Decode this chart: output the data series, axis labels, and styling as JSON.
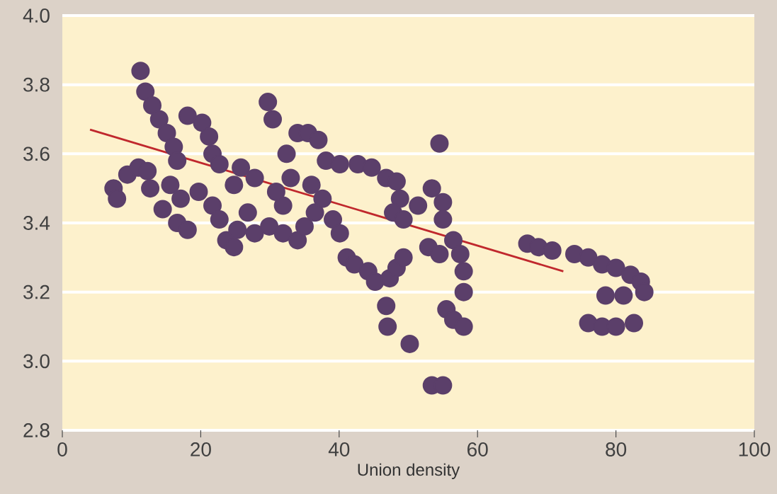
{
  "chart_data": {
    "type": "scatter",
    "xlabel": "Union density",
    "xlim": [
      0,
      100
    ],
    "xticks": [
      0,
      20,
      40,
      60,
      80,
      100
    ],
    "ylim": [
      2.8,
      4.0
    ],
    "yticks": [
      {
        "value": 2.8,
        "label": "2.8"
      },
      {
        "value": 3.0,
        "label": "3.0"
      },
      {
        "value": 3.2,
        "label": "3.2"
      },
      {
        "value": 3.4,
        "label": "3.4"
      },
      {
        "value": 3.6,
        "label": "3.6"
      },
      {
        "value": 3.8,
        "label": "3.8"
      },
      {
        "value": 4.0,
        "label": "4.0"
      }
    ],
    "grid": "y",
    "series": [
      {
        "color": "#5b3f6a",
        "x": [
          11.3,
          12,
          13,
          14,
          15.1,
          16.1,
          16.6,
          18.1,
          20.2,
          21.2,
          21.7,
          22.7,
          7.4,
          7.9,
          9.4,
          11,
          12.3,
          12.7,
          14.5,
          16.6,
          18.1,
          15.6,
          17.1,
          19.7,
          21.7,
          22.7,
          23.7,
          24.8,
          25.3,
          26.8,
          24.8,
          25.8,
          27.8,
          27.8,
          29.9,
          31.9,
          34,
          35,
          36.5,
          29.7,
          30.4,
          32.4,
          34,
          35.5,
          37,
          38.1,
          33,
          36,
          37.6,
          31.9,
          30.9,
          40.1,
          42.7,
          44.7,
          46.8,
          48.3,
          48.8,
          47.8,
          49.3,
          39.1,
          40.1,
          41.1,
          42.2,
          44.2,
          45.2,
          47.3,
          48.3,
          49.3,
          46.8,
          47,
          50.2,
          54.5,
          51.4,
          53.4,
          55,
          55,
          52.9,
          54.5,
          56.5,
          57.5,
          58,
          58,
          55.5,
          56.5,
          58,
          53.4,
          55,
          67.2,
          68.8,
          70.8,
          74,
          76,
          78,
          80,
          82.1,
          83.6,
          84.1,
          81.1,
          78.5,
          76,
          78,
          80,
          82.6
        ],
        "values": [
          3.84,
          3.78,
          3.74,
          3.7,
          3.66,
          3.62,
          3.58,
          3.71,
          3.69,
          3.65,
          3.6,
          3.57,
          3.5,
          3.47,
          3.54,
          3.56,
          3.55,
          3.5,
          3.44,
          3.4,
          3.38,
          3.51,
          3.47,
          3.49,
          3.45,
          3.41,
          3.35,
          3.33,
          3.38,
          3.43,
          3.51,
          3.56,
          3.53,
          3.37,
          3.39,
          3.37,
          3.35,
          3.39,
          3.43,
          3.75,
          3.7,
          3.6,
          3.66,
          3.66,
          3.64,
          3.58,
          3.53,
          3.51,
          3.47,
          3.45,
          3.49,
          3.57,
          3.57,
          3.56,
          3.53,
          3.52,
          3.47,
          3.43,
          3.41,
          3.41,
          3.37,
          3.3,
          3.28,
          3.26,
          3.23,
          3.24,
          3.27,
          3.3,
          3.16,
          3.1,
          3.05,
          3.63,
          3.45,
          3.5,
          3.46,
          3.41,
          3.33,
          3.31,
          3.35,
          3.31,
          3.26,
          3.2,
          3.15,
          3.12,
          3.1,
          2.93,
          2.93,
          3.34,
          3.33,
          3.32,
          3.31,
          3.3,
          3.28,
          3.27,
          3.25,
          3.23,
          3.2,
          3.19,
          3.19,
          3.11,
          3.1,
          3.1,
          3.11
        ]
      },
      {
        "type": "line",
        "color": "#c0282d",
        "x": [
          4,
          72.4
        ],
        "values": [
          3.67,
          3.26
        ]
      }
    ]
  }
}
